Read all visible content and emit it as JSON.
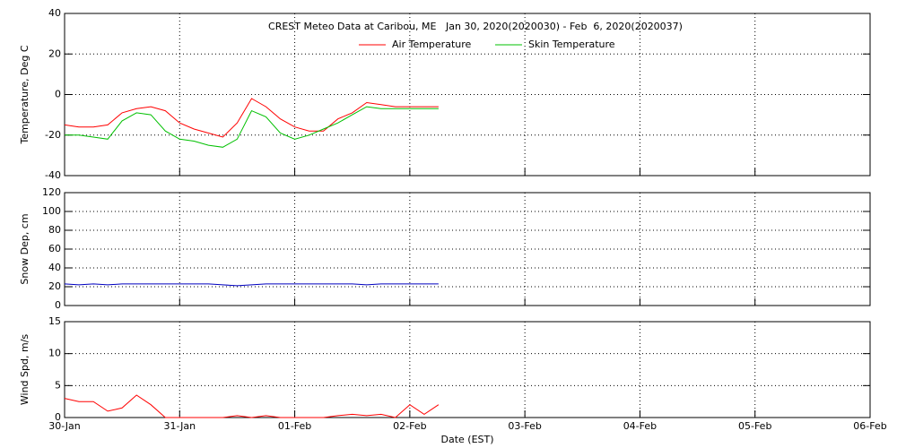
{
  "chart_data": [
    {
      "type": "line",
      "title": "CREST Meteo Data at Caribou, ME   Jan 30, 2020(2020030) - Feb  6, 2020(2020037)",
      "y_label": "Temperature, Deg C",
      "x": [
        0,
        0.125,
        0.25,
        0.375,
        0.5,
        0.625,
        0.75,
        0.875,
        1,
        1.125,
        1.25,
        1.375,
        1.5,
        1.625,
        1.75,
        1.875,
        2,
        2.125,
        2.25,
        2.375,
        2.5,
        2.625,
        2.75,
        2.875,
        3,
        3.125,
        3.25
      ],
      "series": [
        {
          "name": "Air Temperature",
          "color": "#ff0000",
          "values": [
            -15,
            -16,
            -16,
            -15,
            -9,
            -7,
            -6,
            -8,
            -14,
            -17,
            -19,
            -21,
            -14,
            -2,
            -6,
            -12,
            -16,
            -18,
            -18,
            -12,
            -9,
            -4,
            -5,
            -6,
            -6,
            -6,
            -6
          ]
        },
        {
          "name": "Skin Temperature",
          "color": "#00c000",
          "values": [
            -20,
            -20,
            -21,
            -22,
            -13,
            -9,
            -10,
            -18,
            -22,
            -23,
            -25,
            -26,
            -22,
            -8,
            -11,
            -19,
            -22,
            -20,
            -17,
            -14,
            -10,
            -6,
            -7,
            -7,
            -7,
            -7,
            -7
          ]
        }
      ],
      "xlim": [
        0,
        7
      ],
      "xticks": [
        0,
        1,
        2,
        3,
        4,
        5,
        6,
        7
      ],
      "ylim": [
        -40,
        40
      ],
      "yticks": [
        -40,
        -20,
        0,
        20,
        40
      ],
      "grid": true
    },
    {
      "type": "line",
      "y_label": "Snow Dep, cm",
      "x": [
        0,
        0.125,
        0.25,
        0.375,
        0.5,
        0.625,
        0.75,
        0.875,
        1,
        1.125,
        1.25,
        1.375,
        1.5,
        1.625,
        1.75,
        1.875,
        2,
        2.125,
        2.25,
        2.375,
        2.5,
        2.625,
        2.75,
        2.875,
        3,
        3.125,
        3.25
      ],
      "series": [
        {
          "color": "#0000c0",
          "values": [
            23,
            22,
            23,
            22,
            23,
            23,
            23,
            23,
            23,
            23,
            23,
            22,
            21,
            22,
            23,
            23,
            23,
            23,
            23,
            23,
            23,
            22,
            23,
            23,
            23,
            23,
            23
          ]
        }
      ],
      "xlim": [
        0,
        7
      ],
      "xticks": [
        0,
        1,
        2,
        3,
        4,
        5,
        6,
        7
      ],
      "ylim": [
        0,
        120
      ],
      "yticks": [
        0,
        20,
        40,
        60,
        80,
        100,
        120
      ],
      "grid": true
    },
    {
      "type": "line",
      "y_label": "Wind Spd, m/s",
      "x_label": "Date (EST)",
      "x": [
        0,
        0.125,
        0.25,
        0.375,
        0.5,
        0.625,
        0.75,
        0.875,
        1,
        1.125,
        1.25,
        1.375,
        1.5,
        1.625,
        1.75,
        1.875,
        2,
        2.125,
        2.25,
        2.375,
        2.5,
        2.625,
        2.75,
        2.875,
        3,
        3.125,
        3.25
      ],
      "series": [
        {
          "color": "#ff0000",
          "values": [
            3,
            2.5,
            2.5,
            1,
            1.5,
            3.5,
            2,
            0,
            0,
            0,
            0,
            0,
            0.3,
            0,
            0.3,
            0,
            0,
            0,
            0,
            0.3,
            0.5,
            0.3,
            0.5,
            0,
            2,
            0.5,
            2
          ]
        }
      ],
      "xlim": [
        0,
        7
      ],
      "xticks": [
        {
          "value": 0,
          "label": "30-Jan"
        },
        {
          "value": 1,
          "label": "31-Jan"
        },
        {
          "value": 2,
          "label": "01-Feb"
        },
        {
          "value": 3,
          "label": "02-Feb"
        },
        {
          "value": 4,
          "label": "03-Feb"
        },
        {
          "value": 5,
          "label": "04-Feb"
        },
        {
          "value": 6,
          "label": "05-Feb"
        },
        {
          "value": 7,
          "label": "06-Feb"
        }
      ],
      "ylim": [
        0,
        15
      ],
      "yticks": [
        0,
        5,
        10,
        15
      ],
      "grid": true
    }
  ]
}
